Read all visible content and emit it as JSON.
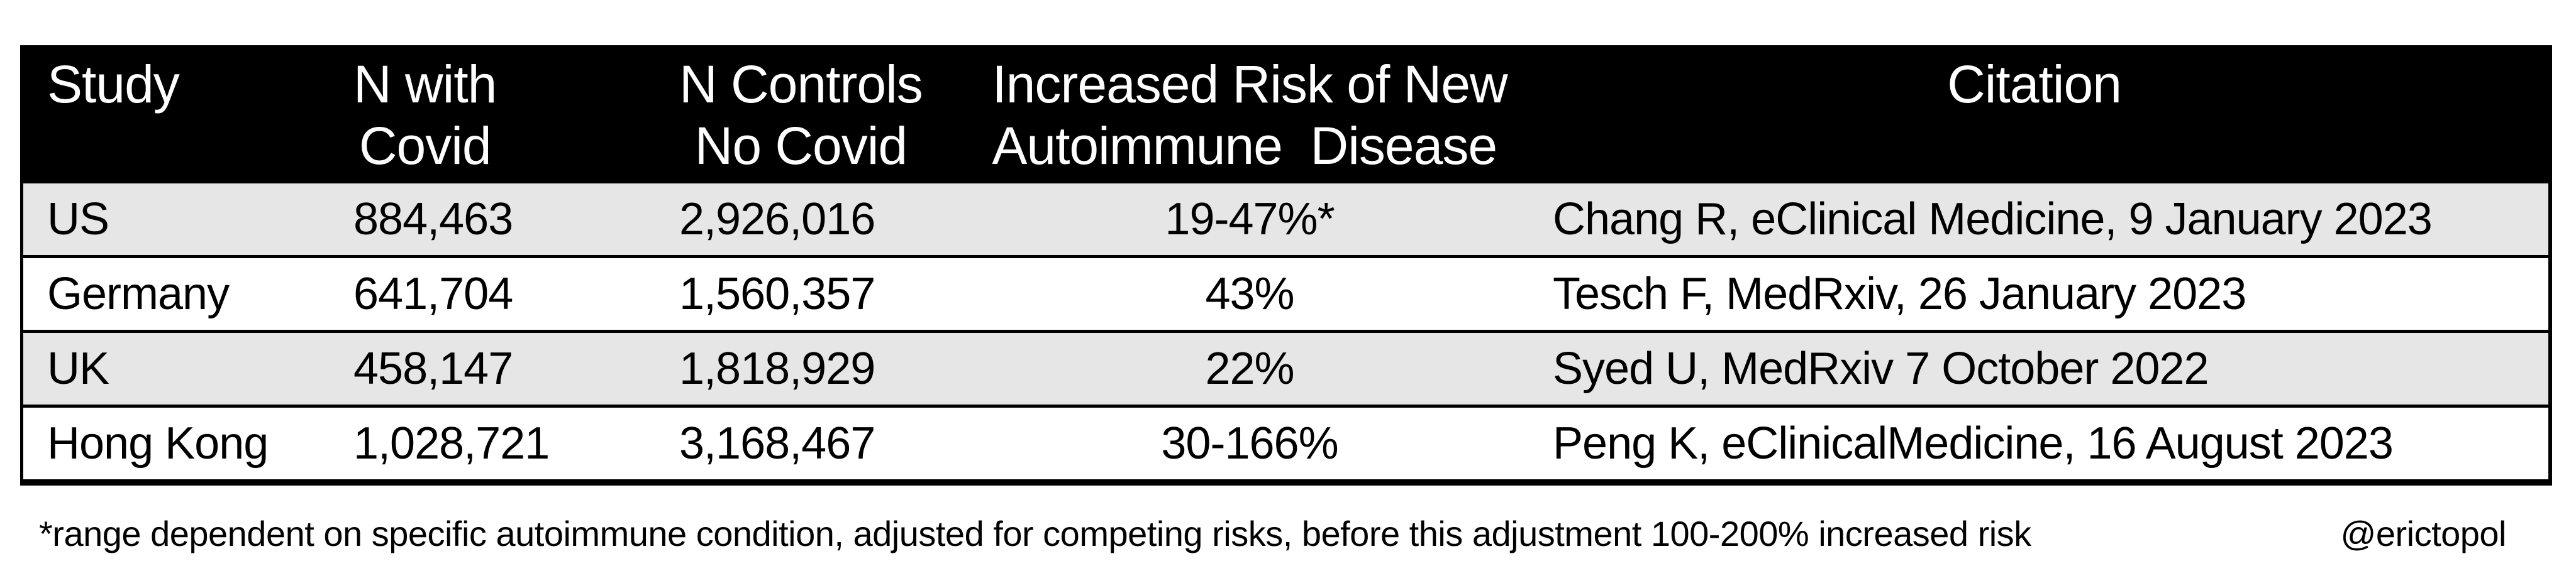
{
  "table": {
    "columns": [
      {
        "id": "study",
        "label_lines": [
          "Study"
        ]
      },
      {
        "id": "n_covid",
        "label_lines": [
          "N with",
          "Covid"
        ]
      },
      {
        "id": "n_controls",
        "label_lines": [
          "N Controls",
          "No Covid"
        ]
      },
      {
        "id": "risk",
        "label_lines": [
          "Increased Risk of New",
          "Autoimmune  Disease"
        ]
      },
      {
        "id": "citation",
        "label_lines": [
          "Citation"
        ]
      }
    ],
    "rows": [
      {
        "study": "US",
        "n_covid": "884,463",
        "n_controls": "2,926,016",
        "risk": "19-47%*",
        "citation": "Chang R, eClinical Medicine, 9 January 2023"
      },
      {
        "study": "Germany",
        "n_covid": "641,704",
        "n_controls": "1,560,357",
        "risk": "43%",
        "citation": "Tesch F, MedRxiv, 26 January 2023"
      },
      {
        "study": "UK",
        "n_covid": "458,147",
        "n_controls": "1,818,929",
        "risk": "22%",
        "citation": "Syed U, MedRxiv 7 October 2022"
      },
      {
        "study": "Hong Kong",
        "n_covid": "1,028,721",
        "n_controls": "3,168,467",
        "risk": "30-166%",
        "citation": "Peng K, eClinicalMedicine, 16 August 2023"
      }
    ]
  },
  "footnote": {
    "text": "*range dependent on specific autoimmune condition, adjusted for competing risks, before this adjustment 100-200% increased risk",
    "handle": "@erictopol"
  },
  "colors": {
    "header_bg": "#000000",
    "header_text": "#ffffff",
    "row_alt_bg": "#e6e6e6",
    "row_plain_bg": "#ffffff",
    "body_text": "#000000",
    "page_bg": "#ffffff",
    "border": "#000000"
  },
  "chart_data": {
    "type": "table",
    "title": "",
    "columns": [
      "Study",
      "N with Covid",
      "N Controls No Covid",
      "Increased Risk of New Autoimmune Disease",
      "Citation"
    ],
    "rows": [
      [
        "US",
        "884,463",
        "2,926,016",
        "19-47%*",
        "Chang R, eClinical Medicine, 9 January 2023"
      ],
      [
        "Germany",
        "641,704",
        "1,560,357",
        "43%",
        "Tesch F, MedRxiv, 26 January 2023"
      ],
      [
        "UK",
        "458,147",
        "1,818,929",
        "22%",
        "Syed U, MedRxiv 7 October 2022"
      ],
      [
        "Hong Kong",
        "1,028,721",
        "3,168,467",
        "30-166%",
        "Peng K, eClinicalMedicine, 16 August 2023"
      ]
    ],
    "footnote": "*range dependent on specific autoimmune condition, adjusted for competing risks, before this adjustment 100-200% increased risk",
    "attribution": "@erictopol"
  }
}
